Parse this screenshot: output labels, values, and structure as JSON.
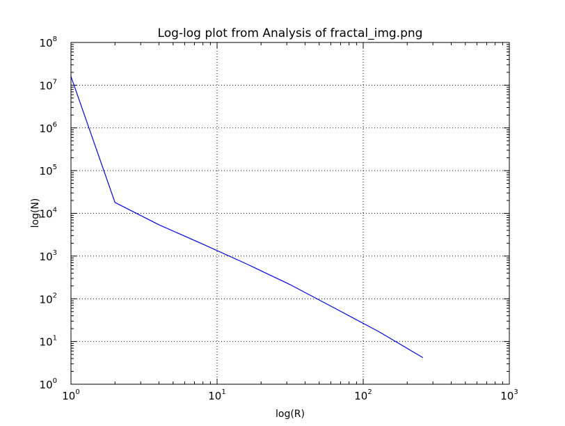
{
  "chart_data": {
    "type": "line",
    "title": "Log-log plot from Analysis of fractal_img.png",
    "xlabel": "log(R)",
    "ylabel": "log(N)",
    "xscale": "log",
    "yscale": "log",
    "xlim": [
      1,
      1000
    ],
    "ylim": [
      1,
      100000000
    ],
    "grid": true,
    "colors": {
      "line": "#0000ff",
      "grid": "#000000",
      "frame": "#000000"
    },
    "x_ticks": [
      {
        "base": "10",
        "exp": "0",
        "value": 1
      },
      {
        "base": "10",
        "exp": "1",
        "value": 10
      },
      {
        "base": "10",
        "exp": "2",
        "value": 100
      },
      {
        "base": "10",
        "exp": "3",
        "value": 1000
      }
    ],
    "y_ticks": [
      {
        "base": "10",
        "exp": "0",
        "value": 1
      },
      {
        "base": "10",
        "exp": "1",
        "value": 10
      },
      {
        "base": "10",
        "exp": "2",
        "value": 100
      },
      {
        "base": "10",
        "exp": "3",
        "value": 1000
      },
      {
        "base": "10",
        "exp": "4",
        "value": 10000
      },
      {
        "base": "10",
        "exp": "5",
        "value": 100000
      },
      {
        "base": "10",
        "exp": "6",
        "value": 1000000
      },
      {
        "base": "10",
        "exp": "7",
        "value": 10000000
      },
      {
        "base": "10",
        "exp": "8",
        "value": 100000000
      }
    ],
    "series": [
      {
        "x": [
          1,
          2,
          4,
          8,
          16,
          32,
          64,
          128,
          256
        ],
        "y": [
          16000000,
          18000,
          5400,
          1900,
          650,
          210,
          60,
          17,
          4.2
        ]
      }
    ]
  }
}
